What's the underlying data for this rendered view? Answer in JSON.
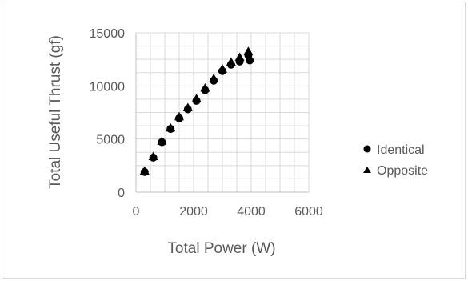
{
  "chart_data": {
    "type": "scatter",
    "xlabel": "Total Power (W)",
    "ylabel": "Total Useful Thrust (gf)",
    "xlim": [
      0,
      6000
    ],
    "ylim": [
      0,
      15000
    ],
    "x_ticks": [
      "0",
      "2000",
      "4000",
      "6000"
    ],
    "y_ticks": [
      "0",
      "5000",
      "10000",
      "15000"
    ],
    "grid": true,
    "legend_position": "right",
    "series": [
      {
        "name": "Identical",
        "marker": "circle",
        "color": "#000000",
        "points": [
          {
            "x": 300,
            "y": 1900
          },
          {
            "x": 600,
            "y": 3250
          },
          {
            "x": 900,
            "y": 4700
          },
          {
            "x": 1200,
            "y": 5950
          },
          {
            "x": 1500,
            "y": 6950
          },
          {
            "x": 1800,
            "y": 7800
          },
          {
            "x": 2100,
            "y": 8600
          },
          {
            "x": 2400,
            "y": 9600
          },
          {
            "x": 2700,
            "y": 10500
          },
          {
            "x": 3000,
            "y": 11400
          },
          {
            "x": 3300,
            "y": 12000
          },
          {
            "x": 3600,
            "y": 12300
          },
          {
            "x": 3900,
            "y": 12900
          },
          {
            "x": 3950,
            "y": 12400
          }
        ]
      },
      {
        "name": "Opposite",
        "marker": "triangle",
        "color": "#000000",
        "points": [
          {
            "x": 300,
            "y": 2000
          },
          {
            "x": 600,
            "y": 3350
          },
          {
            "x": 900,
            "y": 4800
          },
          {
            "x": 1200,
            "y": 6050
          },
          {
            "x": 1500,
            "y": 7100
          },
          {
            "x": 1800,
            "y": 7950
          },
          {
            "x": 2100,
            "y": 8800
          },
          {
            "x": 2400,
            "y": 9800
          },
          {
            "x": 2700,
            "y": 10700
          },
          {
            "x": 3000,
            "y": 11600
          },
          {
            "x": 3300,
            "y": 12250
          },
          {
            "x": 3600,
            "y": 12700
          },
          {
            "x": 3900,
            "y": 13250
          }
        ]
      }
    ]
  }
}
